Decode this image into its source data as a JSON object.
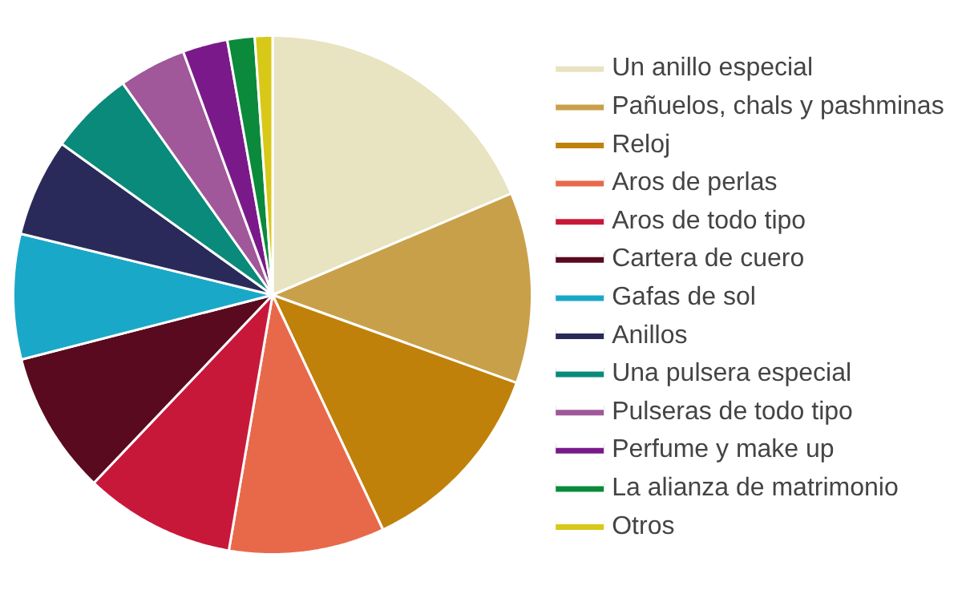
{
  "chart_data": {
    "type": "pie",
    "categories": [
      "Un anillo especial",
      "Pañuelos, chals y pashminas",
      "Reloj",
      "Aros de perlas",
      "Aros de todo tipo",
      "Cartera de cuero",
      "Gafas de sol",
      "Anillos",
      "Una pulsera especial",
      "Pulseras de todo tipo",
      "Perfume y make up",
      "La alianza de matrimonio",
      "Otros"
    ],
    "values": [
      18.6,
      11.9,
      12.5,
      9.7,
      9.4,
      8.9,
      7.8,
      6.1,
      5.3,
      4.2,
      2.8,
      1.7,
      1.1
    ],
    "colors": [
      "#e8e3c0",
      "#c9a04a",
      "#c0810a",
      "#e8694a",
      "#c8183a",
      "#5a0a1e",
      "#1aa8c8",
      "#2a2a5a",
      "#0a8a7a",
      "#a0589a",
      "#7a1a8a",
      "#0a8a3a",
      "#d8c818"
    ],
    "legend": "right"
  }
}
